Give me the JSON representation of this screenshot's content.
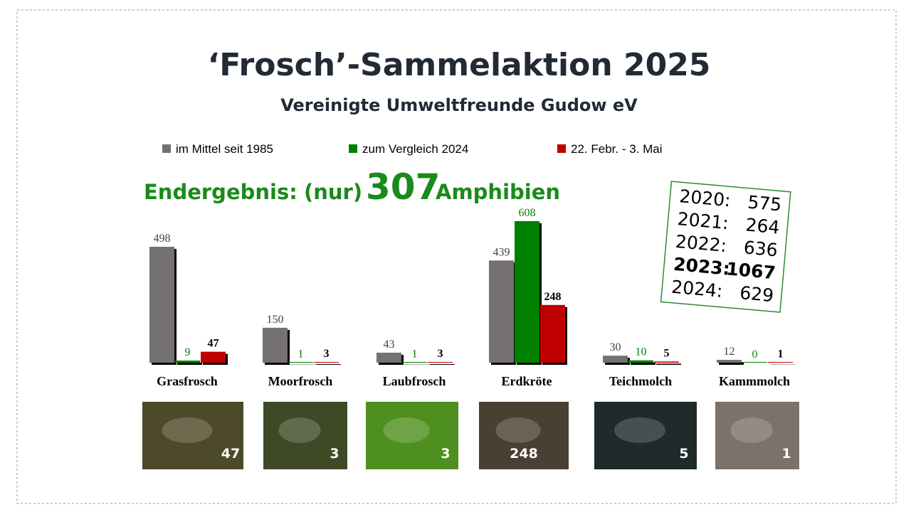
{
  "chart_data": {
    "type": "bar",
    "title": "‘Frosch’-Sammelaktion 2025",
    "subtitle": "Vereinigte Umweltfreunde Gudow eV",
    "categories": [
      "Grasfrosch",
      "Moorfrosch",
      "Laubfrosch",
      "Erdkröte",
      "Teichmolch",
      "Kammmolch"
    ],
    "series": [
      {
        "name": "im Mittel seit 1985",
        "color": "#767171",
        "values": [
          498,
          150,
          43,
          439,
          30,
          12
        ]
      },
      {
        "name": "zum Vergleich 2024",
        "color": "#008000",
        "values": [
          9,
          1,
          1,
          608,
          10,
          0
        ]
      },
      {
        "name": "22. Febr. - 3. Mai",
        "color": "#c00000",
        "values": [
          47,
          3,
          3,
          248,
          5,
          1
        ]
      }
    ],
    "result": {
      "label": "Endergebnis:",
      "qualifier": "(nur)",
      "total": 307,
      "unit": "Amphibien"
    },
    "year_totals": [
      {
        "year": "2020:",
        "value": 575
      },
      {
        "year": "2021:",
        "value": 264
      },
      {
        "year": "2022:",
        "value": 636
      },
      {
        "year": "2023:",
        "value": 1067
      },
      {
        "year": "2024:",
        "value": 629
      }
    ]
  }
}
